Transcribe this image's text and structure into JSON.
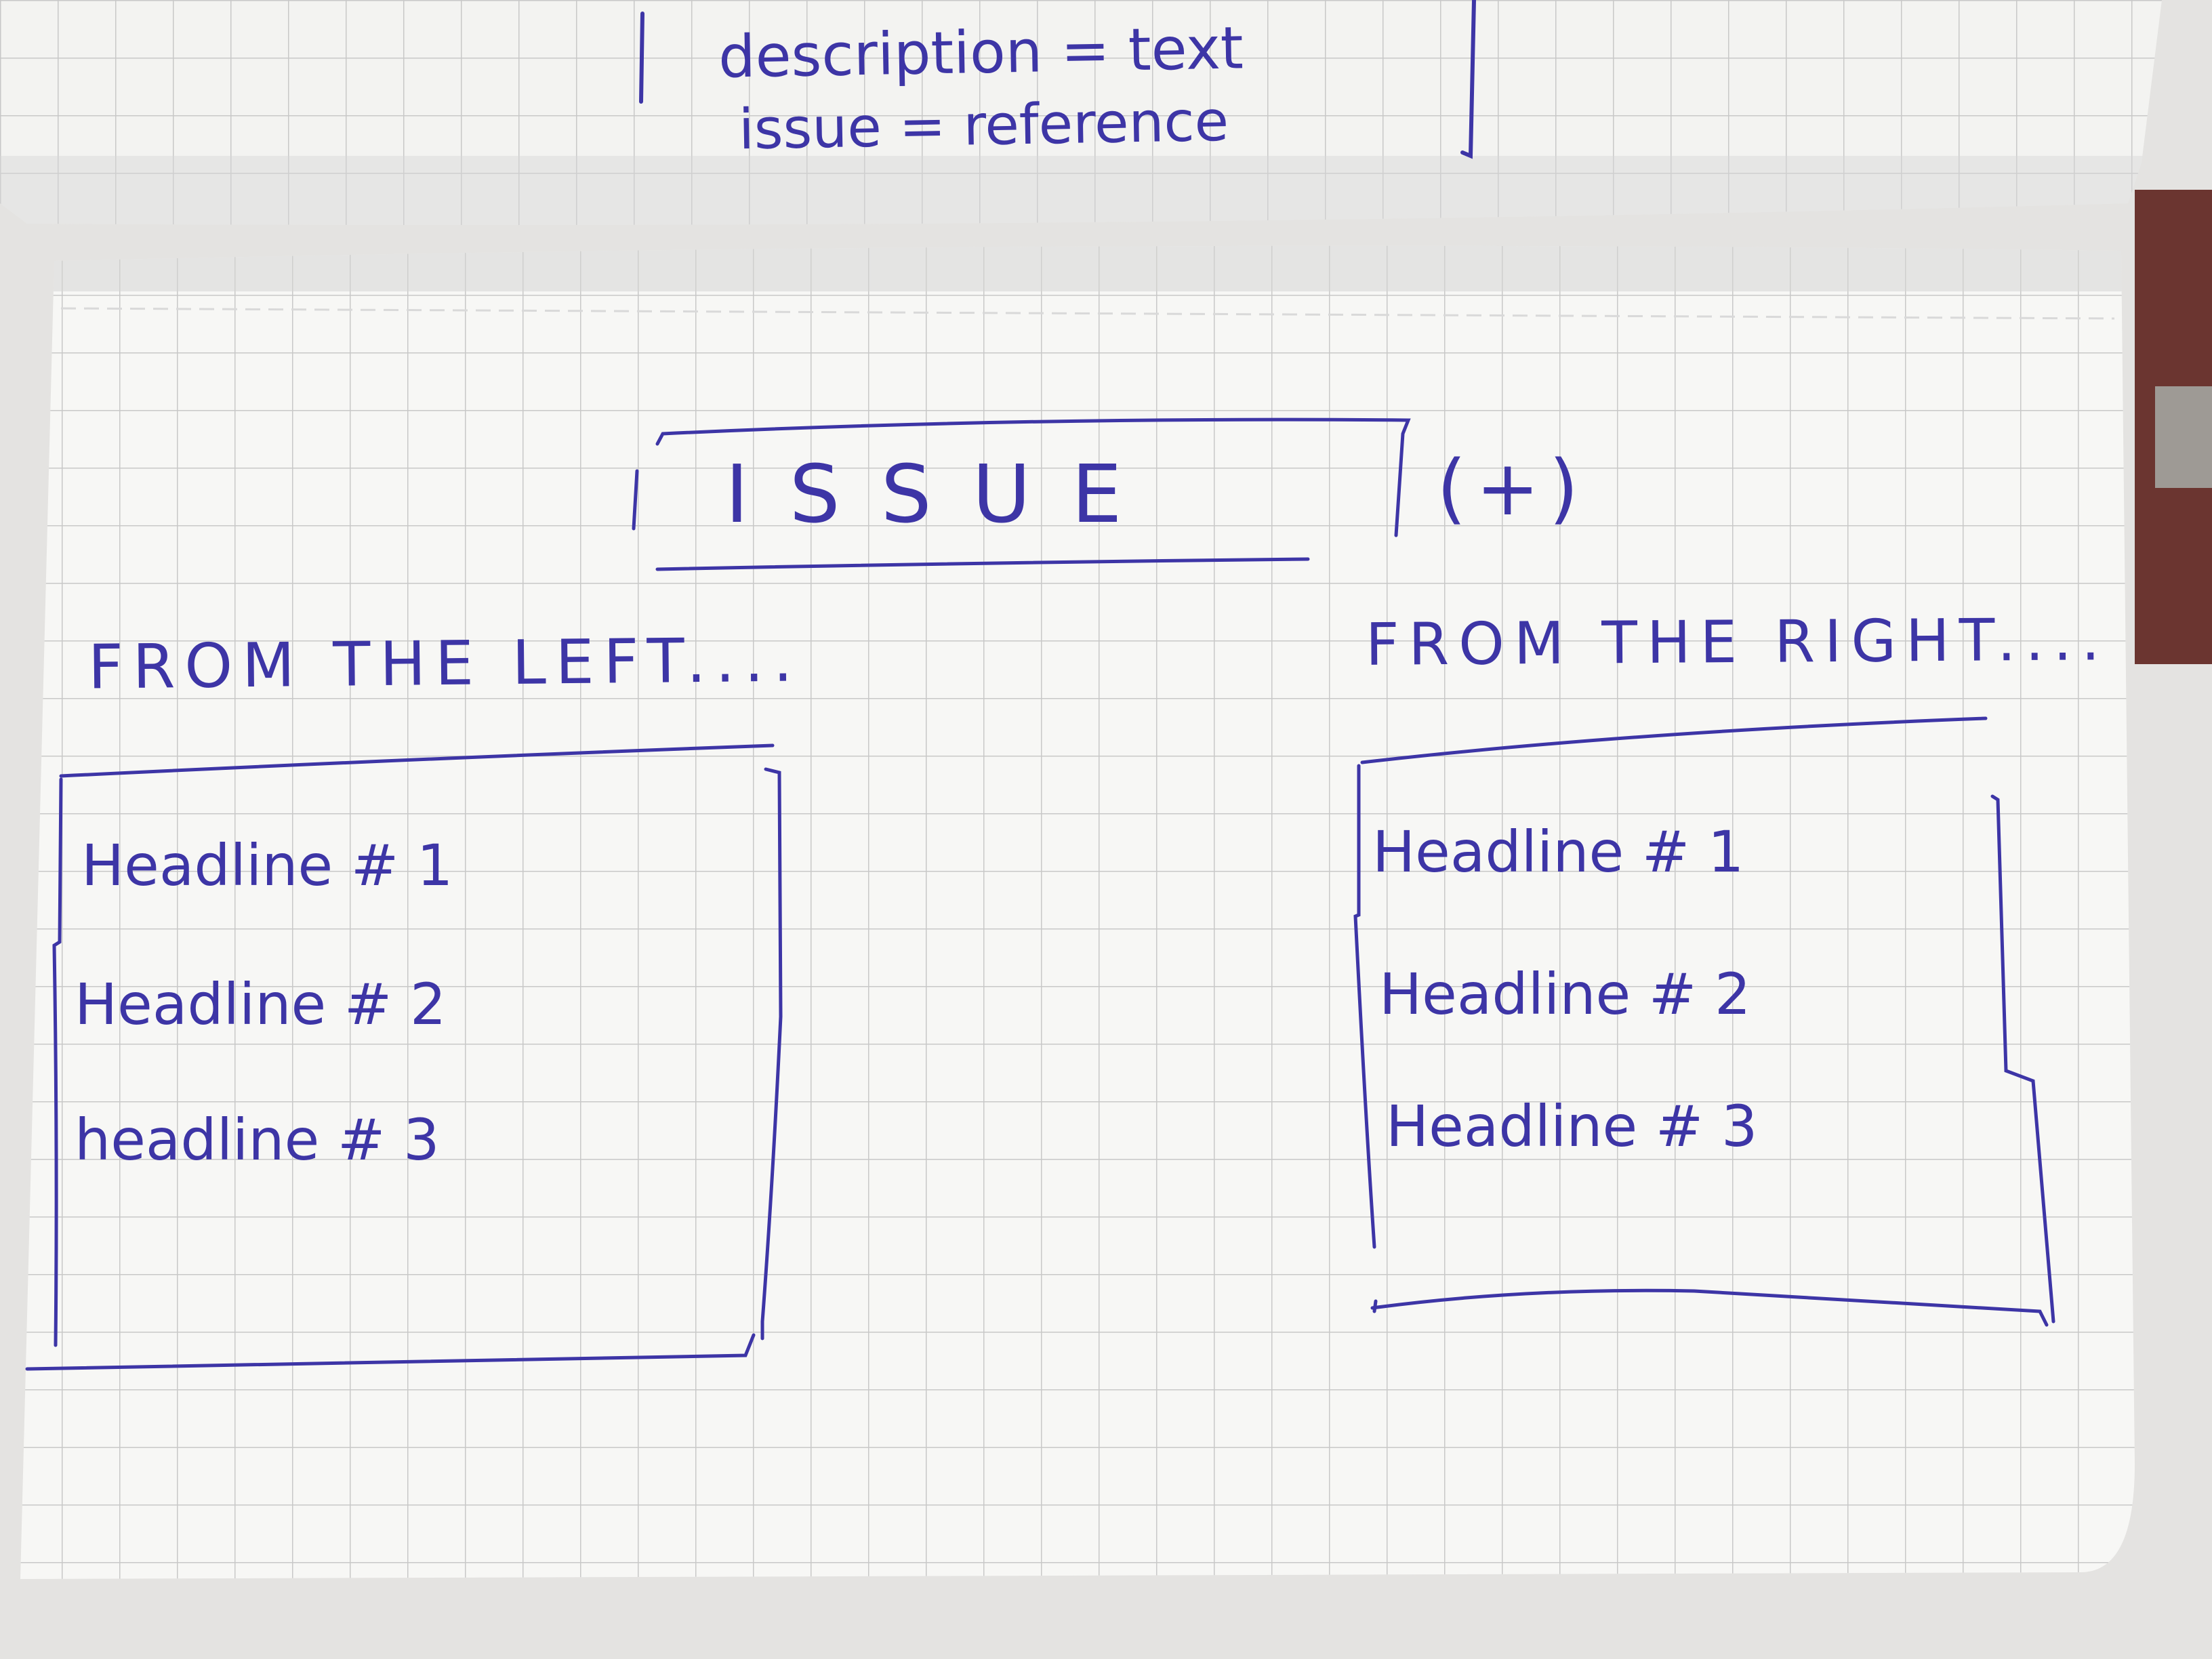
{
  "colors": {
    "ink": "#3d35a6",
    "paper": "#f7f7f5",
    "grid": "#c8c8c8",
    "background": "#e4e3e1",
    "cover": "#6b3530"
  },
  "top_page": {
    "line1": "description = text",
    "line2": "issue = reference"
  },
  "header": {
    "title": "ISSUE",
    "add_symbol": "(+)"
  },
  "left_panel": {
    "heading": "FROM THE LEFT....",
    "items": [
      "Headline # 1",
      "Headline # 2",
      "headline # 3"
    ]
  },
  "right_panel": {
    "heading": "FROM THE RIGHT....",
    "items": [
      "Headline # 1",
      "Headline # 2",
      "Headline # 3"
    ]
  }
}
